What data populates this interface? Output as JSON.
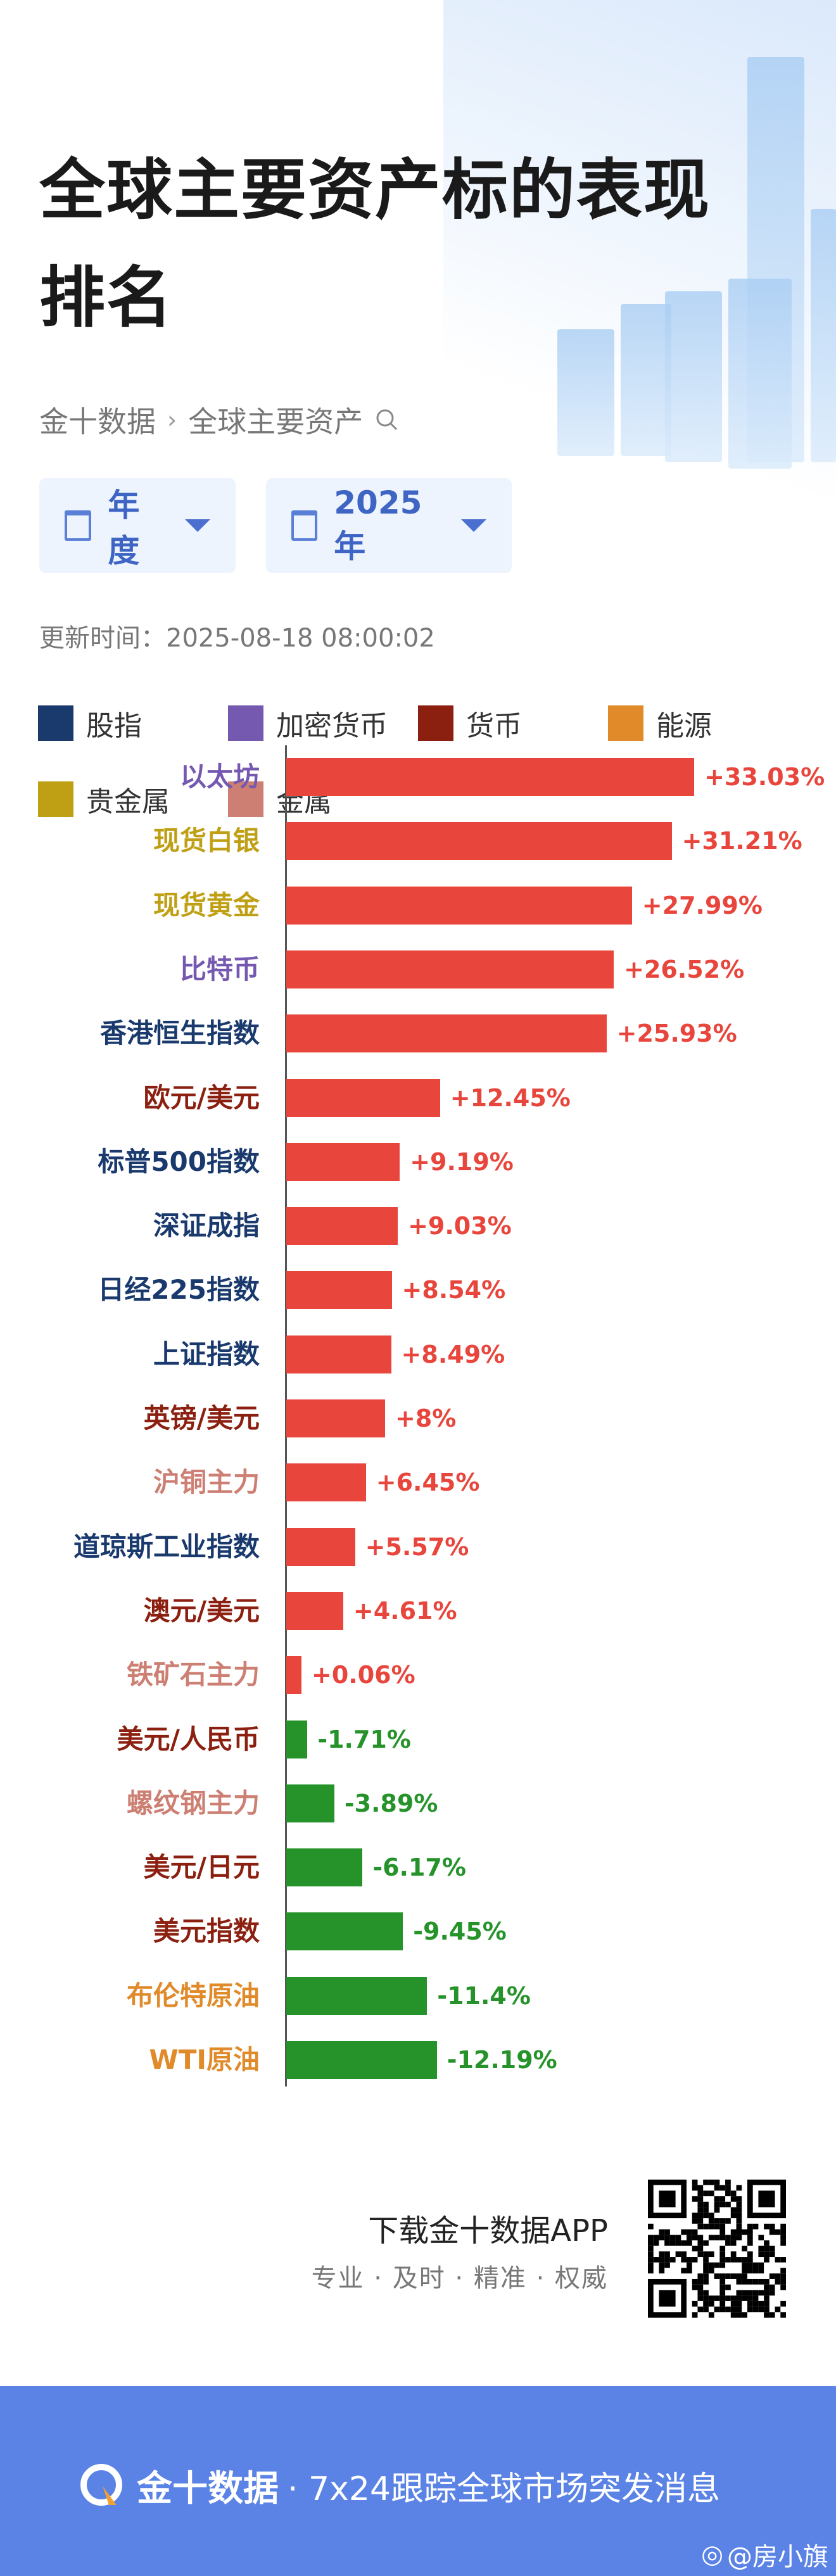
{
  "header": {
    "title": "全球主要资产标的表现排名",
    "breadcrumb": [
      "金十数据",
      "全球主要资产"
    ],
    "period_dropdown": "年度",
    "year_dropdown": "2025年",
    "update_label": "更新时间：",
    "update_time": "2025-08-18 08:00:02"
  },
  "legend": [
    {
      "label": "股指",
      "color": "#1a3a6e"
    },
    {
      "label": "加密货币",
      "color": "#7558b0"
    },
    {
      "label": "货币",
      "color": "#8b1f10"
    },
    {
      "label": "能源",
      "color": "#e08a2a"
    },
    {
      "label": "贵金属",
      "color": "#bfa015"
    },
    {
      "label": "金属",
      "color": "#cc7f72"
    }
  ],
  "chart_data": {
    "type": "bar",
    "orientation": "horizontal",
    "unit": "%",
    "positive_color": "#e8453c",
    "negative_color": "#25932a",
    "categories": [
      "以太坊",
      "现货白银",
      "现货黄金",
      "比特币",
      "香港恒生指数",
      "欧元/美元",
      "标普500指数",
      "深证成指",
      "日经225指数",
      "上证指数",
      "英镑/美元",
      "沪铜主力",
      "道琼斯工业指数",
      "澳元/美元",
      "铁矿石主力",
      "美元/人民币",
      "螺纹钢主力",
      "美元/日元",
      "美元指数",
      "布伦特原油",
      "WTI原油"
    ],
    "groups": [
      "加密货币",
      "贵金属",
      "贵金属",
      "加密货币",
      "股指",
      "货币",
      "股指",
      "股指",
      "股指",
      "股指",
      "货币",
      "金属",
      "股指",
      "货币",
      "金属",
      "货币",
      "金属",
      "货币",
      "货币",
      "能源",
      "能源"
    ],
    "values": [
      33.03,
      31.21,
      27.99,
      26.52,
      25.93,
      12.45,
      9.19,
      9.03,
      8.54,
      8.49,
      8,
      6.45,
      5.57,
      4.61,
      0.06,
      -1.71,
      -3.89,
      -6.17,
      -9.45,
      -11.4,
      -12.19
    ],
    "value_labels": [
      "+33.03%",
      "+31.21%",
      "+27.99%",
      "+26.52%",
      "+25.93%",
      "+12.45%",
      "+9.19%",
      "+9.03%",
      "+8.54%",
      "+8.49%",
      "+8%",
      "+6.45%",
      "+5.57%",
      "+4.61%",
      "+0.06%",
      "-1.71%",
      "-3.89%",
      "-6.17%",
      "-9.45%",
      "-11.4%",
      "-12.19%"
    ]
  },
  "footer": {
    "download_title": "下载金十数据APP",
    "tagline": "专业 · 及时 · 精准 · 权威",
    "brand": "金十数据",
    "slogan": "· 7x24跟踪全球市场突发消息",
    "watermark": "@房小旗"
  }
}
